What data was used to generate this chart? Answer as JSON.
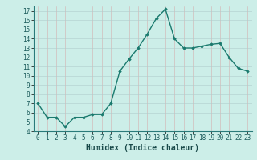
{
  "x": [
    0,
    1,
    2,
    3,
    4,
    5,
    6,
    7,
    8,
    9,
    10,
    11,
    12,
    13,
    14,
    15,
    16,
    17,
    18,
    19,
    20,
    21,
    22,
    23
  ],
  "y": [
    7.0,
    5.5,
    5.5,
    4.5,
    5.5,
    5.5,
    5.8,
    5.8,
    7.0,
    10.5,
    11.8,
    13.0,
    14.5,
    16.2,
    17.2,
    14.0,
    13.0,
    13.0,
    13.2,
    13.4,
    13.5,
    12.0,
    10.8,
    10.5
  ],
  "line_color": "#1a7a6e",
  "marker": "D",
  "marker_size": 1.8,
  "bg_color": "#cceee8",
  "grid_color": "#aacccc",
  "grid_minor_color": "#c8e4e0",
  "xlabel": "Humidex (Indice chaleur)",
  "ylim": [
    4,
    17.5
  ],
  "xlim": [
    -0.5,
    23.5
  ],
  "yticks": [
    4,
    5,
    6,
    7,
    8,
    9,
    10,
    11,
    12,
    13,
    14,
    15,
    16,
    17
  ],
  "xticks": [
    0,
    1,
    2,
    3,
    4,
    5,
    6,
    7,
    8,
    9,
    10,
    11,
    12,
    13,
    14,
    15,
    16,
    17,
    18,
    19,
    20,
    21,
    22,
    23
  ],
  "tick_fontsize": 5.5,
  "label_fontsize": 7,
  "line_width": 1.0
}
